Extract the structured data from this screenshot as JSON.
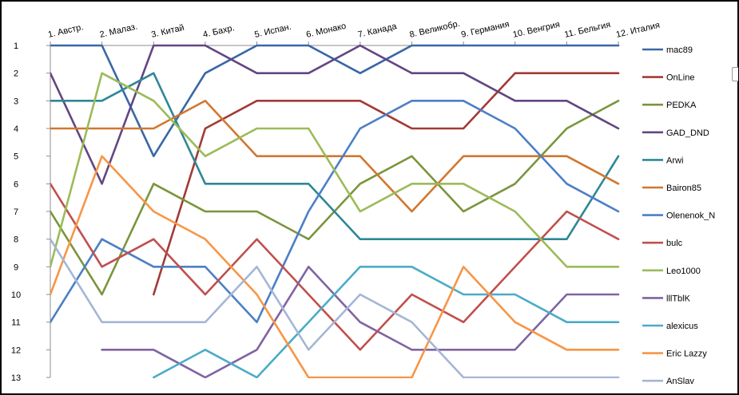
{
  "chart_data": {
    "type": "line",
    "title": "",
    "xlabel": "",
    "ylabel": "",
    "categories": [
      "1. Австр.",
      "2. Малаз.",
      "3. Китай",
      "4. Бахр.",
      "5. Испан.",
      "6. Монако",
      "7. Канада",
      "8. Великобр.",
      "9. Германия",
      "10. Венгрия",
      "11. Бельгия",
      "12. Италия"
    ],
    "y_ticks": [
      "1",
      "2",
      "3",
      "4",
      "5",
      "6",
      "7",
      "8",
      "9",
      "10",
      "11",
      "12",
      "13"
    ],
    "ylim": [
      1,
      13
    ],
    "y_reversed": true,
    "x_axis_position": "top",
    "grid": false,
    "legend_position": "right",
    "series": [
      {
        "name": "mac89",
        "color": "#3A67A6",
        "values": [
          1,
          1,
          5,
          2,
          1,
          1,
          2,
          1,
          1,
          1,
          1,
          1
        ]
      },
      {
        "name": "OnLine",
        "color": "#A23A36",
        "values": [
          null,
          null,
          10,
          4,
          3,
          3,
          3,
          4,
          4,
          2,
          2,
          2
        ]
      },
      {
        "name": "PEDKA",
        "color": "#7A953C",
        "values": [
          7,
          10,
          6,
          7,
          7,
          8,
          6,
          5,
          7,
          6,
          4,
          3
        ]
      },
      {
        "name": "GAD_DND",
        "color": "#624682",
        "values": [
          2,
          6,
          1,
          1,
          2,
          2,
          1,
          2,
          2,
          3,
          3,
          4
        ]
      },
      {
        "name": "Arwi",
        "color": "#2E8896",
        "values": [
          3,
          3,
          2,
          6,
          6,
          6,
          8,
          8,
          8,
          8,
          8,
          5
        ]
      },
      {
        "name": "Bairon85",
        "color": "#D2772F",
        "values": [
          4,
          4,
          4,
          3,
          5,
          5,
          5,
          7,
          5,
          5,
          5,
          6
        ]
      },
      {
        "name": "Olenenok_N",
        "color": "#4C7FC6",
        "values": [
          11,
          8,
          9,
          9,
          11,
          7,
          4,
          3,
          3,
          4,
          6,
          7
        ]
      },
      {
        "name": "bulc",
        "color": "#C0504D",
        "values": [
          6,
          9,
          8,
          10,
          8,
          10,
          12,
          10,
          11,
          9,
          7,
          8
        ]
      },
      {
        "name": "Leo1000",
        "color": "#9BBB59",
        "values": [
          9,
          2,
          3,
          5,
          4,
          4,
          7,
          6,
          6,
          7,
          9,
          9
        ]
      },
      {
        "name": "lllTblK",
        "color": "#8064A2",
        "values": [
          null,
          12,
          12,
          13,
          12,
          9,
          11,
          12,
          12,
          12,
          10,
          10
        ]
      },
      {
        "name": "alexicus",
        "color": "#4BACC6",
        "values": [
          null,
          null,
          13,
          12,
          13,
          11,
          9,
          9,
          10,
          10,
          11,
          11
        ]
      },
      {
        "name": "Eric Lazzy",
        "color": "#F79646",
        "values": [
          10,
          5,
          7,
          8,
          10,
          13,
          13,
          13,
          9,
          11,
          12,
          12
        ]
      },
      {
        "name": "AnSlav",
        "color": "#A5B6D6",
        "values": [
          8,
          11,
          11,
          11,
          9,
          12,
          10,
          11,
          13,
          13,
          13,
          13
        ]
      }
    ]
  }
}
